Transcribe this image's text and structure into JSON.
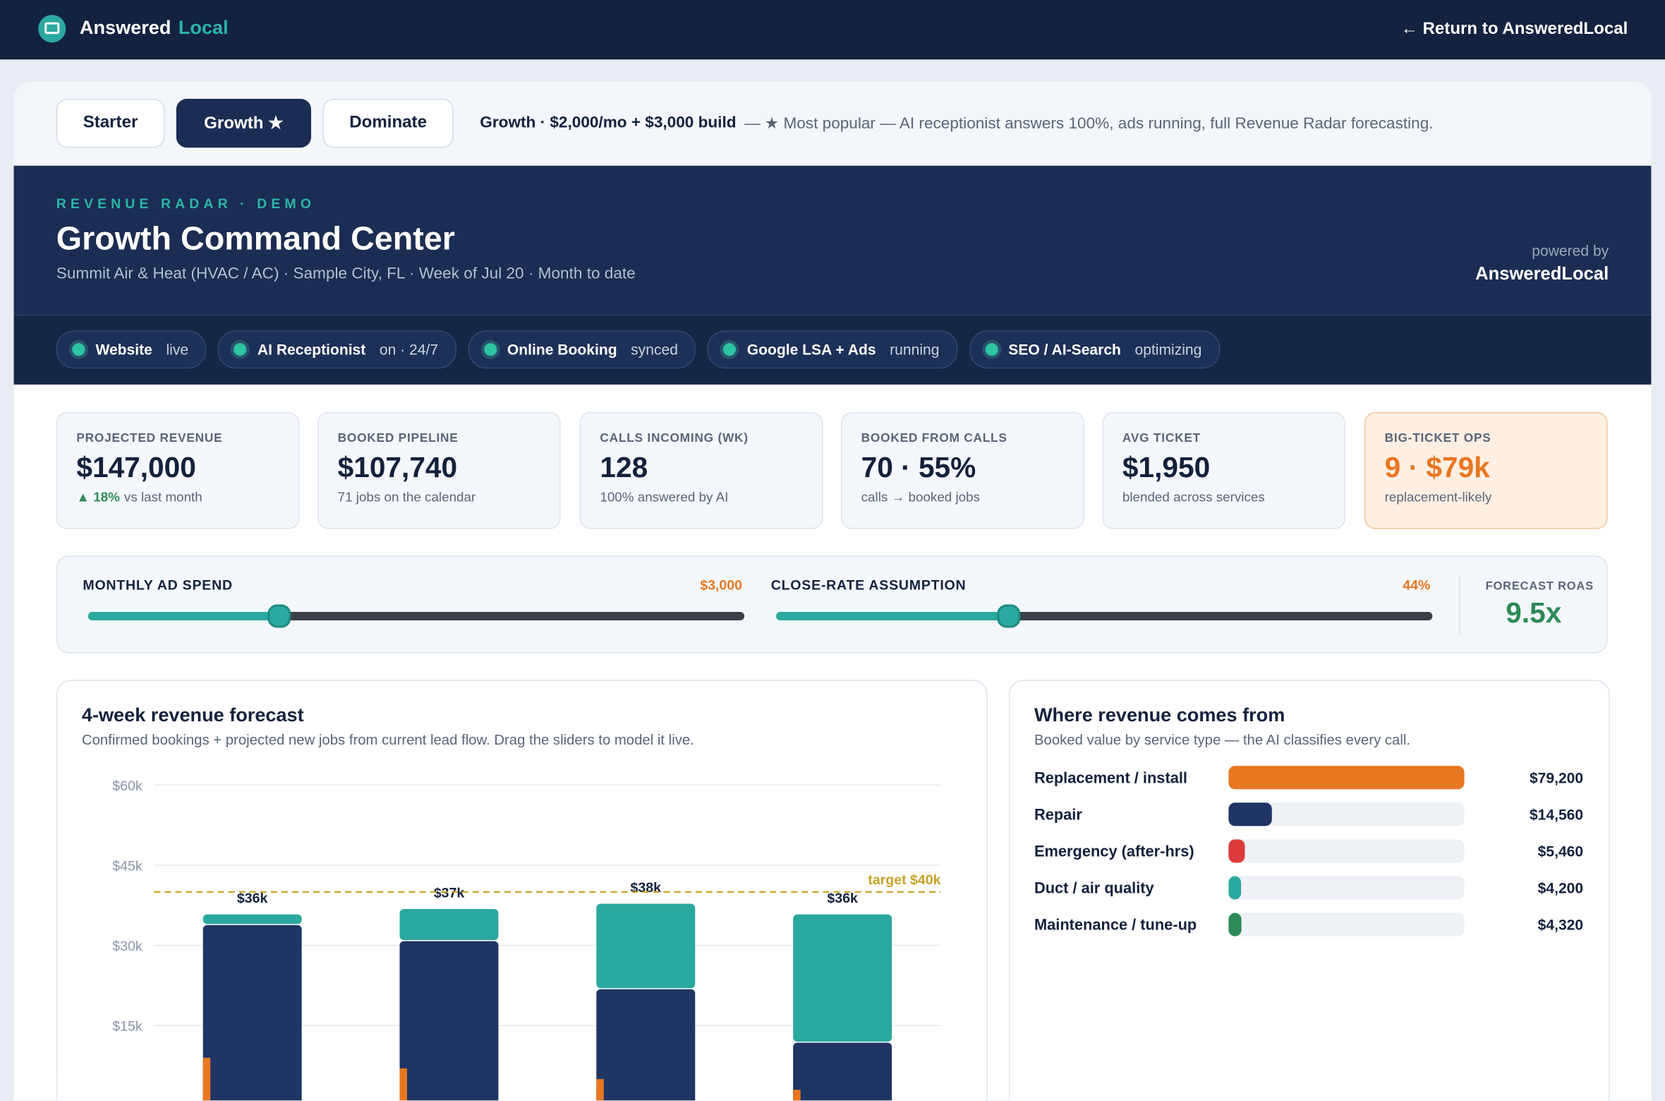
{
  "nav": {
    "brand": "Answered",
    "brand_accent": "Local",
    "return_link": "← Return to AnsweredLocal"
  },
  "plans": {
    "tabs": [
      "Starter",
      "Growth ★",
      "Dominate"
    ],
    "summary_bold": "Growth · $2,000/mo + $3,000 build",
    "summary": "— ★ Most popular — AI receptionist answers 100%, ads running, full Revenue Radar forecasting."
  },
  "hero": {
    "eyebrow": "REVENUE RADAR · DEMO",
    "title": "Growth Command Center",
    "subtitle": "Summit Air & Heat (HVAC / AC) · Sample City, FL · Week of Jul 20 · Month to date",
    "powered_by": "powered by",
    "powered_brand": "AnsweredLocal"
  },
  "status": [
    {
      "name": "Website",
      "state": "live"
    },
    {
      "name": "AI Receptionist",
      "state": "on · 24/7"
    },
    {
      "name": "Online Booking",
      "state": "synced"
    },
    {
      "name": "Google LSA + Ads",
      "state": "running"
    },
    {
      "name": "SEO / AI-Search",
      "state": "optimizing"
    }
  ],
  "kpis": [
    {
      "label": "PROJECTED REVENUE",
      "value": "$147,000",
      "delta": "▲ 18%",
      "note": "vs last month"
    },
    {
      "label": "BOOKED PIPELINE",
      "value": "$107,740",
      "note": "71 jobs on the calendar"
    },
    {
      "label": "CALLS INCOMING (WK)",
      "value": "128",
      "note": "100% answered by AI"
    },
    {
      "label": "BOOKED FROM CALLS",
      "value": "70 · 55%",
      "note": "calls → booked jobs"
    },
    {
      "label": "AVG TICKET",
      "value": "$1,950",
      "note": "blended across services"
    },
    {
      "label": "BIG-TICKET OPS",
      "value": "9 · $79k",
      "note": "replacement-likely"
    }
  ],
  "sliders": [
    {
      "label": "MONTHLY AD SPEND",
      "value": "$3,000"
    },
    {
      "label": "CLOSE-RATE ASSUMPTION",
      "value": "44%"
    }
  ],
  "roas": {
    "label": "FORECAST ROAS",
    "value": "9.5x"
  },
  "chart_data": [
    {
      "type": "stacked_bar",
      "title": "4-week revenue forecast",
      "subtitle": "Confirmed bookings + projected new jobs from current lead flow. Drag the sliders to model it live.",
      "categories": [
        null,
        null,
        null,
        null
      ],
      "series": [
        {
          "color": "#1f3564",
          "values": [
            34000,
            31000,
            22000,
            12000
          ]
        },
        {
          "color": "#2ba89f",
          "values": [
            2000,
            6000,
            16000,
            24000
          ]
        }
      ],
      "edge_series": {
        "color": "#e87722",
        "values": [
          9000,
          7000,
          5000,
          3000
        ]
      },
      "bar_labels": [
        "$36k",
        "$37k",
        "$38k",
        "$36k"
      ],
      "target": 40000,
      "target_label": "target $40k",
      "target_color": "#c9a227",
      "ylim": [
        0,
        60000
      ],
      "yticks": [
        {
          "value": 15000,
          "label": "$15k"
        },
        {
          "value": 30000,
          "label": "$30k"
        },
        {
          "value": 45000,
          "label": "$45k"
        },
        {
          "value": 60000,
          "label": "$60k"
        }
      ],
      "grid": true
    },
    {
      "type": "hbar",
      "title": "Where revenue comes from",
      "subtitle": "Booked value by service type — the AI classifies every call.",
      "categories": [
        "Replacement / install",
        "Repair",
        "Emergency (after-hrs)",
        "Duct / air quality",
        "Maintenance / tune-up"
      ],
      "values": [
        79200,
        14560,
        5460,
        4200,
        4320
      ],
      "value_labels": [
        "$79,200",
        "$14,560",
        "$5,460",
        "$4,200",
        "$4,320"
      ],
      "colors": [
        "#e87722",
        "#1f3564",
        "#dc3b3b",
        "#2ba89f",
        "#2e8b57"
      ],
      "xlim": [
        0,
        79200
      ]
    }
  ]
}
